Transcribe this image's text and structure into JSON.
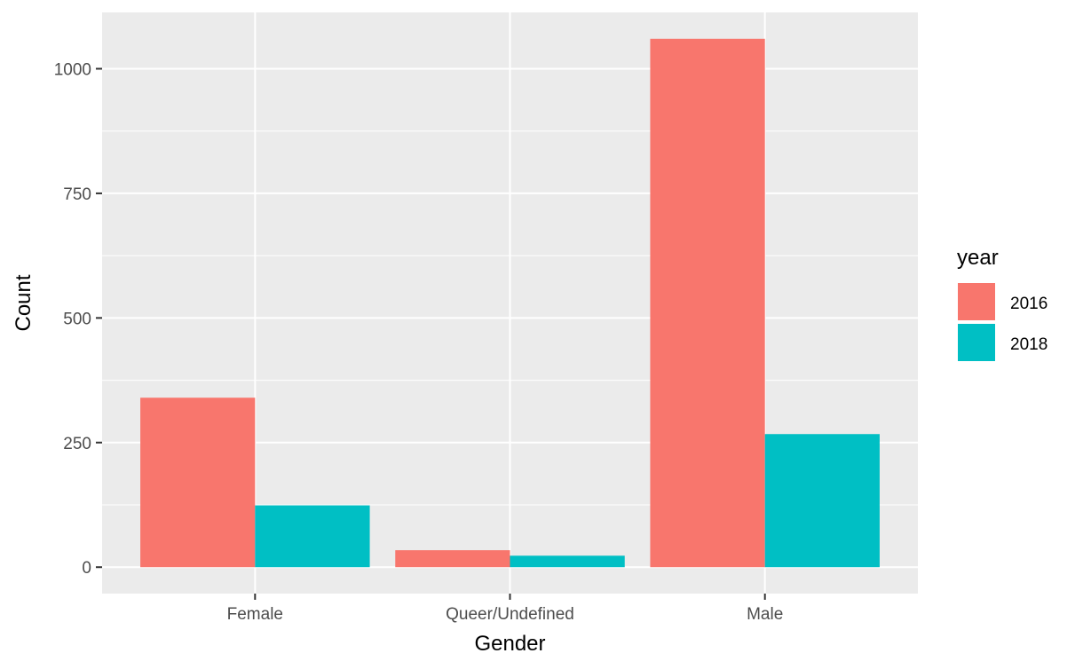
{
  "chart_data": {
    "type": "bar",
    "categories": [
      "Female",
      "Queer/Undefined",
      "Male"
    ],
    "series": [
      {
        "name": "2016",
        "color": "#F8766D",
        "values": [
          340,
          34,
          1060
        ]
      },
      {
        "name": "2018",
        "color": "#00BFC4",
        "values": [
          124,
          23,
          267
        ]
      }
    ],
    "xlabel": "Gender",
    "ylabel": "Count",
    "ylim": [
      -53,
      1113
    ],
    "yticks": [
      0,
      250,
      500,
      750,
      1000
    ],
    "ytick_labels": [
      "0",
      "250",
      "500",
      "750",
      "1000"
    ],
    "legend": {
      "title": "year",
      "position": "right"
    },
    "grid": true,
    "panel_background": "#EBEBEB",
    "grid_color": "#FFFFFF"
  }
}
